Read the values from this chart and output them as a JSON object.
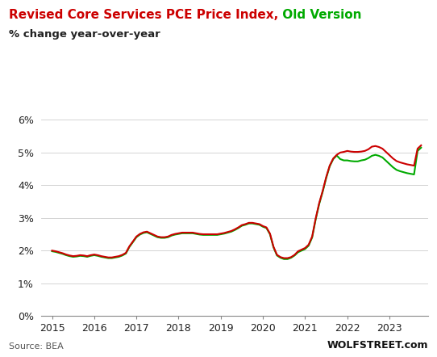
{
  "title_red": "Revised Core Services PCE Price Index,",
  "title_green": " Old Version",
  "subtitle": "% change year-over-year",
  "source": "Source: BEA",
  "watermark": "WOLFSTREET.com",
  "color_red": "#cc0000",
  "color_green": "#00aa00",
  "ylim": [
    0.0,
    0.065
  ],
  "yticks": [
    0.0,
    0.01,
    0.02,
    0.03,
    0.04,
    0.05,
    0.06
  ],
  "ytick_labels": [
    "0%",
    "1%",
    "2%",
    "3%",
    "4%",
    "5%",
    "6%"
  ],
  "xticks": [
    2015,
    2016,
    2017,
    2018,
    2019,
    2020,
    2021,
    2022,
    2023
  ],
  "xlim": [
    2014.75,
    2023.92
  ],
  "dates": [
    2015.0,
    2015.083,
    2015.167,
    2015.25,
    2015.333,
    2015.417,
    2015.5,
    2015.583,
    2015.667,
    2015.75,
    2015.833,
    2015.917,
    2016.0,
    2016.083,
    2016.167,
    2016.25,
    2016.333,
    2016.417,
    2016.5,
    2016.583,
    2016.667,
    2016.75,
    2016.833,
    2016.917,
    2017.0,
    2017.083,
    2017.167,
    2017.25,
    2017.333,
    2017.417,
    2017.5,
    2017.583,
    2017.667,
    2017.75,
    2017.833,
    2017.917,
    2018.0,
    2018.083,
    2018.167,
    2018.25,
    2018.333,
    2018.417,
    2018.5,
    2018.583,
    2018.667,
    2018.75,
    2018.833,
    2018.917,
    2019.0,
    2019.083,
    2019.167,
    2019.25,
    2019.333,
    2019.417,
    2019.5,
    2019.583,
    2019.667,
    2019.75,
    2019.833,
    2019.917,
    2020.0,
    2020.083,
    2020.167,
    2020.25,
    2020.333,
    2020.417,
    2020.5,
    2020.583,
    2020.667,
    2020.75,
    2020.833,
    2020.917,
    2021.0,
    2021.083,
    2021.167,
    2021.25,
    2021.333,
    2021.417,
    2021.5,
    2021.583,
    2021.667,
    2021.75,
    2021.833,
    2021.917,
    2022.0,
    2022.083,
    2022.167,
    2022.25,
    2022.333,
    2022.417,
    2022.5,
    2022.583,
    2022.667,
    2022.75,
    2022.833,
    2022.917,
    2023.0,
    2023.083,
    2023.167,
    2023.25,
    2023.333,
    2023.417,
    2023.5,
    2023.583,
    2023.667,
    2023.75
  ],
  "values_revised": [
    0.02,
    0.0198,
    0.0195,
    0.0192,
    0.0188,
    0.0185,
    0.0183,
    0.0184,
    0.0186,
    0.0185,
    0.0183,
    0.0186,
    0.0188,
    0.0186,
    0.0183,
    0.0181,
    0.0179,
    0.0179,
    0.0181,
    0.0183,
    0.0187,
    0.0193,
    0.0213,
    0.0228,
    0.0243,
    0.0251,
    0.0256,
    0.0258,
    0.0253,
    0.0248,
    0.0243,
    0.0241,
    0.0241,
    0.0243,
    0.0248,
    0.0251,
    0.0253,
    0.0255,
    0.0255,
    0.0255,
    0.0255,
    0.0253,
    0.0251,
    0.025,
    0.025,
    0.025,
    0.025,
    0.025,
    0.0252,
    0.0254,
    0.0257,
    0.026,
    0.0265,
    0.0271,
    0.0278,
    0.0281,
    0.0285,
    0.0285,
    0.0283,
    0.0281,
    0.0275,
    0.0271,
    0.0252,
    0.0212,
    0.0187,
    0.018,
    0.0177,
    0.0177,
    0.018,
    0.0187,
    0.0198,
    0.0203,
    0.0208,
    0.0218,
    0.0243,
    0.0298,
    0.0345,
    0.0383,
    0.0425,
    0.046,
    0.0482,
    0.0493,
    0.05,
    0.0502,
    0.0505,
    0.0503,
    0.0502,
    0.0502,
    0.0503,
    0.0505,
    0.051,
    0.0518,
    0.052,
    0.0517,
    0.0512,
    0.0502,
    0.0492,
    0.0482,
    0.0474,
    0.047,
    0.0467,
    0.0464,
    0.0462,
    0.046,
    0.0512,
    0.0522
  ],
  "values_old": [
    0.0198,
    0.0196,
    0.0193,
    0.019,
    0.0186,
    0.0183,
    0.0181,
    0.0182,
    0.0184,
    0.0183,
    0.0181,
    0.0184,
    0.0186,
    0.0184,
    0.0181,
    0.0179,
    0.0177,
    0.0177,
    0.0179,
    0.0181,
    0.0185,
    0.0191,
    0.0211,
    0.0226,
    0.0241,
    0.0249,
    0.0254,
    0.0256,
    0.0251,
    0.0246,
    0.0241,
    0.0239,
    0.0239,
    0.0241,
    0.0246,
    0.0249,
    0.0251,
    0.0253,
    0.0253,
    0.0253,
    0.0253,
    0.0251,
    0.0249,
    0.0248,
    0.0248,
    0.0248,
    0.0248,
    0.0248,
    0.025,
    0.0252,
    0.0255,
    0.0258,
    0.0263,
    0.0269,
    0.0276,
    0.0279,
    0.0283,
    0.0283,
    0.0281,
    0.0279,
    0.0273,
    0.0269,
    0.025,
    0.021,
    0.0185,
    0.0178,
    0.0174,
    0.0174,
    0.0178,
    0.0185,
    0.0195,
    0.02,
    0.0205,
    0.0215,
    0.024,
    0.0295,
    0.0342,
    0.038,
    0.0422,
    0.0458,
    0.048,
    0.0491,
    0.048,
    0.0476,
    0.0476,
    0.0474,
    0.0473,
    0.0473,
    0.0476,
    0.0478,
    0.0483,
    0.049,
    0.0493,
    0.049,
    0.0485,
    0.0475,
    0.0465,
    0.0455,
    0.0447,
    0.0443,
    0.044,
    0.0437,
    0.0435,
    0.0433,
    0.0505,
    0.0515
  ]
}
